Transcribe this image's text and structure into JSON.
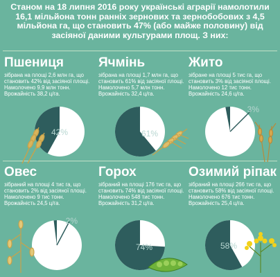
{
  "header": {
    "text": "Станом на 18 липня 2016 року українські аграрії намолотили 16,1 мільйона тонн ранніх зернових та зернобобових з 4,5 мільйона га, що становить 47% (або майже половину) від засіяної даними культурами площ. З них:"
  },
  "colors": {
    "background": "#6ab49e",
    "pie_fill": "#2e5d5d",
    "pie_rest": "#ffffff",
    "label": "#b7d6d1"
  },
  "crops": [
    {
      "title": "Пшениця",
      "desc": "зібрана на площі 2,6 млн га, що становить 42% від засіяної площі. Намолочено 9,9 млн тонн. Врожайність 38,2 ц/га.",
      "percent_label": "42%",
      "share": 0.42,
      "icon": "wheat-ears-icon"
    },
    {
      "title": "Ячмінь",
      "desc": "зібрана на площі 1,7 млн га, що становить 61% від засіяної площі. Намолочено 5,7 млн тонн. Врожайність 32,4 ц/га.",
      "percent_label": "61%",
      "share": 0.61,
      "icon": "barley-ear-icon"
    },
    {
      "title": "Жито",
      "desc": "зібране на площі 5 тис га, що становить 3% від засіяної площі. Намолочено 12 тис тонн. Врожайність 24,6 ц/га.",
      "percent_label": "3%",
      "share": 0.03,
      "icon": "rye-ears-icon"
    },
    {
      "title": "Овес",
      "desc": "зібраний на площі 4 тис га, що становить 2% від засіяної площі. Намолочено 9 тис тонн. Врожайність 24,5 ц/га.",
      "percent_label": "2%",
      "share": 0.02,
      "icon": "oat-sprig-icon"
    },
    {
      "title": "Горох",
      "desc": "зібраний на площі 176 тис га, що становить 74% від засіяної площі. Намолочено 548 тис тонн. Врожайність 31,2 ц/га.",
      "percent_label": "74%",
      "share": 0.74,
      "icon": "pea-pod-icon"
    },
    {
      "title": "Озимий ріпак",
      "desc": "зібраний на площі 266 тис га, що становить 58% від засіяної площі. Намолочено 676 тис тонн. Врожайність 25,4 ц/га.",
      "percent_label": "58%",
      "share": 0.58,
      "icon": "rapeseed-flower-icon"
    }
  ]
}
